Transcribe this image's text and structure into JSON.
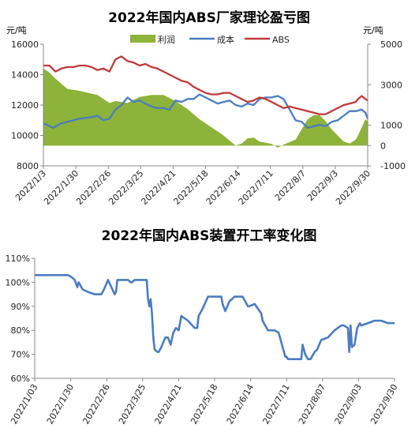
{
  "charts": {
    "top": {
      "title": "2022年国内ABS厂家理论盈亏图",
      "left_unit": "元/吨",
      "right_unit": "元/吨",
      "legend": [
        "利润",
        "成本",
        "ABS"
      ]
    },
    "bottom": {
      "title": "2022年国内ABS装置开工率变化图"
    }
  },
  "chart_data": [
    {
      "type": "line",
      "title": "2022年国内ABS厂家理论盈亏图",
      "ylabel": "元/吨",
      "y2label": "元/吨",
      "ylim": [
        8000,
        16000
      ],
      "y2lim": [
        -1000,
        5000
      ],
      "yticks": [
        "8000",
        "10000",
        "12000",
        "14000",
        "16000"
      ],
      "y2ticks": [
        "-1000",
        "0",
        "1000",
        "3000",
        "5000"
      ],
      "x_labels": [
        "2022/1/3",
        "2022/1/30",
        "2022/2/26",
        "2022/3/25",
        "2022/4/21",
        "2022/5/18",
        "2022/6/14",
        "2022/7/11",
        "2022/8/7",
        "2022/9/3",
        "2022/9/30"
      ],
      "x_range": [
        0,
        270
      ],
      "legend_position": "top",
      "series": [
        {
          "name": "利润",
          "axis": "right",
          "type": "area",
          "color": "#8db33a",
          "x": [
            0,
            5,
            10,
            20,
            30,
            45,
            55,
            60,
            70,
            80,
            90,
            100,
            110,
            120,
            130,
            140,
            150,
            160,
            165,
            170,
            175,
            180,
            190,
            195,
            200,
            210,
            215,
            220,
            225,
            230,
            235,
            240,
            245,
            250,
            255,
            260,
            262,
            265,
            268,
            270
          ],
          "values": [
            3800,
            3600,
            3300,
            2800,
            2700,
            2500,
            2100,
            2200,
            2100,
            2400,
            2500,
            2500,
            2200,
            1800,
            1300,
            900,
            500,
            0,
            100,
            350,
            400,
            200,
            80,
            -100,
            50,
            300,
            800,
            1300,
            1500,
            1500,
            1200,
            800,
            500,
            200,
            100,
            300,
            500,
            900,
            1300,
            1200
          ]
        },
        {
          "name": "成本",
          "axis": "left",
          "type": "line",
          "color": "#4a7dbf",
          "x": [
            0,
            3,
            8,
            15,
            20,
            30,
            40,
            45,
            50,
            55,
            60,
            65,
            70,
            75,
            80,
            85,
            90,
            95,
            100,
            105,
            110,
            115,
            120,
            125,
            130,
            135,
            140,
            145,
            150,
            155,
            160,
            165,
            170,
            175,
            180,
            185,
            190,
            195,
            200,
            205,
            210,
            215,
            220,
            225,
            230,
            235,
            240,
            245,
            250,
            255,
            260,
            265,
            268,
            270
          ],
          "values": [
            10800,
            10700,
            10500,
            10800,
            10900,
            11100,
            11200,
            11300,
            11000,
            11100,
            11700,
            12000,
            12500,
            12200,
            12300,
            12100,
            11900,
            11800,
            11800,
            11700,
            12300,
            12200,
            12400,
            12400,
            12700,
            12500,
            12300,
            12100,
            12200,
            12300,
            12000,
            11900,
            12100,
            12000,
            12400,
            12500,
            12500,
            12600,
            12400,
            11700,
            11000,
            10900,
            10500,
            10600,
            10700,
            10600,
            10900,
            11000,
            11300,
            11600,
            11600,
            11700,
            11500,
            11100
          ]
        },
        {
          "name": "ABS",
          "axis": "left",
          "type": "line",
          "color": "#c0393b",
          "x": [
            0,
            5,
            10,
            15,
            20,
            25,
            30,
            35,
            40,
            45,
            50,
            55,
            60,
            65,
            70,
            75,
            80,
            85,
            90,
            95,
            100,
            105,
            110,
            115,
            120,
            125,
            130,
            135,
            140,
            145,
            150,
            155,
            160,
            165,
            170,
            175,
            180,
            185,
            190,
            195,
            200,
            205,
            210,
            215,
            220,
            225,
            230,
            235,
            240,
            245,
            250,
            255,
            260,
            262,
            265,
            268,
            270
          ],
          "values": [
            14600,
            14600,
            14200,
            14400,
            14500,
            14500,
            14600,
            14600,
            14500,
            14300,
            14400,
            14200,
            15000,
            15200,
            14900,
            14800,
            14600,
            14700,
            14500,
            14400,
            14200,
            14000,
            13800,
            13600,
            13500,
            13200,
            13000,
            12800,
            12700,
            12700,
            12800,
            12800,
            12600,
            12400,
            12200,
            12300,
            12500,
            12400,
            12200,
            12000,
            11800,
            11900,
            11800,
            11700,
            11600,
            11500,
            11400,
            11400,
            11600,
            11800,
            12000,
            12100,
            12200,
            12400,
            12600,
            12400,
            12300
          ]
        }
      ]
    },
    {
      "type": "line",
      "title": "2022年国内ABS装置开工率变化图",
      "ylim": [
        60,
        110
      ],
      "yticks": [
        "60%",
        "70%",
        "80%",
        "90%",
        "100%",
        "110%"
      ],
      "x_labels": [
        "2022/1/03",
        "2022/1/30",
        "2022/2/26",
        "2022/3/25",
        "2022/4/21",
        "2022/5/18",
        "2022/6/14",
        "2022/7/11",
        "2022/8/07",
        "2022/9/03",
        "2022/9/30"
      ],
      "x_range": [
        0,
        270
      ],
      "series": [
        {
          "name": "开工率",
          "color": "#4a7dbf",
          "x": [
            0,
            25,
            28,
            30,
            32,
            33,
            34,
            36,
            40,
            45,
            50,
            52,
            55,
            60,
            61,
            62,
            64,
            70,
            72,
            73,
            75,
            80,
            84,
            85,
            86,
            87,
            88,
            89,
            90,
            92,
            93,
            95,
            98,
            100,
            102,
            104,
            106,
            108,
            110,
            115,
            120,
            122,
            123,
            126,
            130,
            140,
            141,
            143,
            146,
            150,
            156,
            160,
            161,
            165,
            170,
            171,
            175,
            180,
            183,
            188,
            189,
            190,
            191,
            194,
            197,
            200,
            201,
            203,
            205,
            207,
            210,
            212,
            215,
            220,
            225,
            230,
            232,
            235,
            236,
            237,
            238,
            240,
            242,
            244,
            245,
            250,
            255,
            260,
            265,
            270
          ],
          "values": [
            103,
            103,
            102,
            101,
            98,
            100,
            99,
            97,
            96,
            95,
            95,
            97,
            101,
            95,
            96,
            101,
            101,
            101,
            100,
            100,
            101,
            101,
            101,
            93,
            90,
            93,
            87,
            77,
            72,
            71,
            71,
            73,
            77,
            77,
            74,
            79,
            81,
            80,
            86,
            84,
            81,
            81,
            86,
            89,
            94,
            94,
            91,
            88,
            92,
            94,
            94,
            90,
            90,
            91,
            87,
            84,
            80,
            80,
            79,
            69,
            69,
            68,
            68,
            68,
            68,
            68,
            74,
            70,
            68,
            68,
            71,
            72,
            76,
            77,
            80,
            82,
            82,
            81,
            71,
            82,
            73,
            74,
            81,
            83,
            82,
            83,
            84,
            84,
            83,
            83
          ]
        }
      ]
    }
  ]
}
